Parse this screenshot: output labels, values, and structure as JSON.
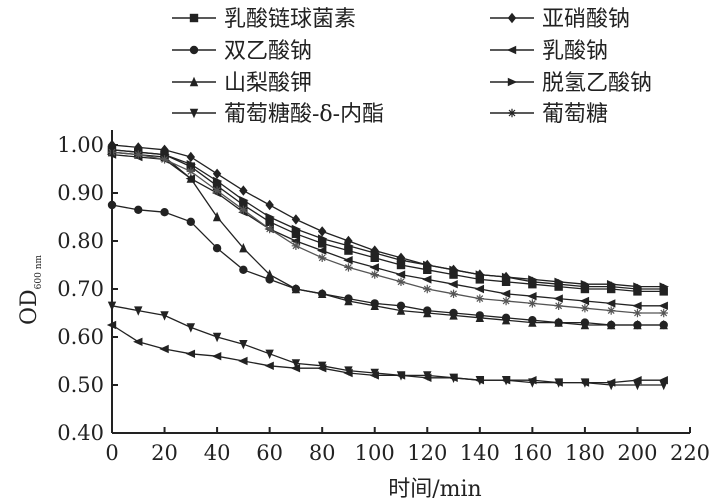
{
  "chart_data": {
    "type": "line",
    "xlabel": "时间/min",
    "ylabel_main": "OD",
    "ylabel_sub": "600 nm",
    "xlim": [
      0,
      220
    ],
    "ylim": [
      0.4,
      1.0
    ],
    "x_ticks": [
      "0",
      "20",
      "40",
      "60",
      "80",
      "100",
      "120",
      "140",
      "160",
      "180",
      "200",
      "220"
    ],
    "y_ticks": [
      "0.40",
      "0.50",
      "0.60",
      "0.70",
      "0.80",
      "0.90",
      "1.00"
    ],
    "grid": false,
    "legend_position": "top",
    "x": [
      0,
      10,
      20,
      30,
      40,
      50,
      60,
      70,
      80,
      90,
      100,
      110,
      120,
      130,
      140,
      150,
      160,
      170,
      180,
      190,
      200,
      210
    ],
    "series": [
      {
        "name": "乳酸链球菌素",
        "marker": "square",
        "color": "#222222",
        "values": [
          0.99,
          0.985,
          0.98,
          0.955,
          0.915,
          0.875,
          0.84,
          0.815,
          0.795,
          0.78,
          0.765,
          0.75,
          0.74,
          0.73,
          0.72,
          0.715,
          0.71,
          0.705,
          0.7,
          0.7,
          0.695,
          0.695
        ]
      },
      {
        "name": "亚硝酸钠",
        "marker": "diamond",
        "color": "#222222",
        "values": [
          1.0,
          0.995,
          0.99,
          0.975,
          0.94,
          0.905,
          0.875,
          0.845,
          0.82,
          0.8,
          0.78,
          0.765,
          0.75,
          0.74,
          0.73,
          0.725,
          0.715,
          0.71,
          0.705,
          0.705,
          0.7,
          0.7
        ]
      },
      {
        "name": "双乙酸钠",
        "marker": "circle",
        "color": "#222222",
        "values": [
          0.875,
          0.865,
          0.86,
          0.84,
          0.785,
          0.74,
          0.72,
          0.7,
          0.69,
          0.68,
          0.67,
          0.665,
          0.655,
          0.65,
          0.645,
          0.64,
          0.635,
          0.63,
          0.63,
          0.625,
          0.625,
          0.625
        ]
      },
      {
        "name": "乳酸钠",
        "marker": "triangle-left",
        "color": "#222222",
        "values": [
          0.98,
          0.975,
          0.97,
          0.93,
          0.9,
          0.86,
          0.825,
          0.8,
          0.78,
          0.76,
          0.745,
          0.73,
          0.72,
          0.71,
          0.7,
          0.69,
          0.685,
          0.68,
          0.675,
          0.67,
          0.665,
          0.665
        ]
      },
      {
        "name": "山梨酸钾",
        "marker": "triangle-up",
        "color": "#222222",
        "values": [
          0.985,
          0.98,
          0.975,
          0.93,
          0.85,
          0.785,
          0.73,
          0.7,
          0.69,
          0.675,
          0.665,
          0.655,
          0.65,
          0.645,
          0.64,
          0.635,
          0.63,
          0.63,
          0.625,
          0.625,
          0.625,
          0.625
        ]
      },
      {
        "name": "脱氢乙酸钠",
        "marker": "triangle-right",
        "color": "#222222",
        "values": [
          0.99,
          0.985,
          0.98,
          0.96,
          0.925,
          0.885,
          0.85,
          0.825,
          0.805,
          0.79,
          0.775,
          0.76,
          0.75,
          0.74,
          0.73,
          0.725,
          0.72,
          0.715,
          0.71,
          0.71,
          0.705,
          0.705
        ]
      },
      {
        "name": "葡萄糖酸-δ-内酯",
        "marker": "triangle-down",
        "color": "#222222",
        "values": [
          0.665,
          0.655,
          0.645,
          0.62,
          0.6,
          0.585,
          0.565,
          0.545,
          0.54,
          0.53,
          0.525,
          0.52,
          0.52,
          0.515,
          0.51,
          0.51,
          0.505,
          0.505,
          0.505,
          0.5,
          0.5,
          0.5
        ]
      },
      {
        "name": "葡萄糖",
        "marker": "star",
        "color": "#555555",
        "values": [
          0.985,
          0.98,
          0.97,
          0.945,
          0.905,
          0.865,
          0.825,
          0.79,
          0.765,
          0.745,
          0.73,
          0.715,
          0.7,
          0.69,
          0.68,
          0.675,
          0.67,
          0.665,
          0.66,
          0.655,
          0.65,
          0.65
        ]
      },
      {
        "name": "",
        "marker": "triangle-left",
        "color": "#222222",
        "values": [
          0.625,
          0.59,
          0.575,
          0.565,
          0.56,
          0.55,
          0.54,
          0.535,
          0.535,
          0.525,
          0.52,
          0.52,
          0.515,
          0.515,
          0.51,
          0.51,
          0.51,
          0.505,
          0.505,
          0.505,
          0.51,
          0.51
        ]
      }
    ],
    "legend": [
      {
        "label": "乳酸链球菌素",
        "marker": "square"
      },
      {
        "label": "亚硝酸钠",
        "marker": "diamond"
      },
      {
        "label": "双乙酸钠",
        "marker": "circle"
      },
      {
        "label": "乳酸钠",
        "marker": "triangle-left"
      },
      {
        "label": "山梨酸钾",
        "marker": "triangle-up"
      },
      {
        "label": "脱氢乙酸钠",
        "marker": "triangle-right"
      },
      {
        "label": "葡萄糖酸-δ-内酯",
        "marker": "triangle-down"
      },
      {
        "label": "葡萄糖",
        "marker": "star"
      }
    ]
  }
}
